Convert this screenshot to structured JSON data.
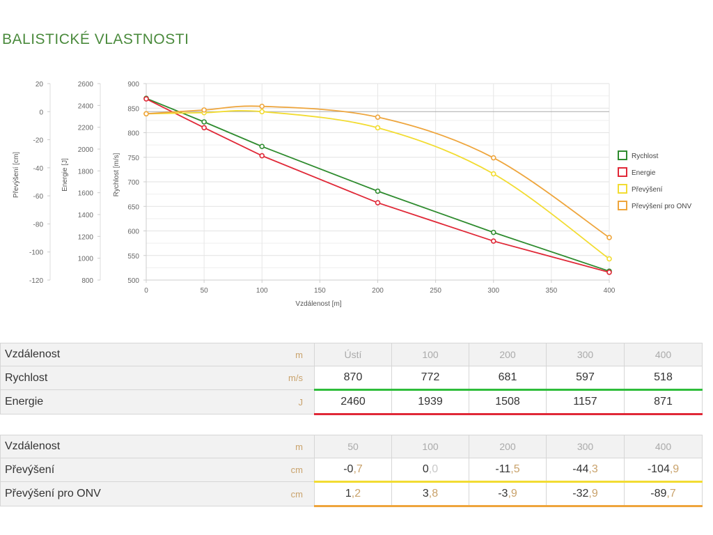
{
  "page": {
    "title": "BALISTICKÉ VLASTNOSTI"
  },
  "chart_data": {
    "type": "line",
    "xlabel": "Vzdálenost [m]",
    "xlim": [
      0,
      400
    ],
    "x_ticks": [
      "0",
      "50",
      "100",
      "150",
      "200",
      "250",
      "300",
      "350",
      "400"
    ],
    "axes": {
      "prevyseni": {
        "label": "Převýšení [cm]",
        "lim": [
          -120,
          20
        ],
        "ticks": [
          "20",
          "0",
          "-20",
          "-40",
          "-60",
          "-80",
          "-100",
          "-120"
        ]
      },
      "energie": {
        "label": "Energie [J]",
        "lim": [
          800,
          2600
        ],
        "ticks": [
          "2600",
          "2400",
          "2200",
          "2000",
          "1800",
          "1600",
          "1400",
          "1200",
          "1000",
          "800"
        ]
      },
      "rychlost": {
        "label": "Rychlost [m/s]",
        "lim": [
          500,
          900
        ],
        "ticks": [
          "900",
          "850",
          "800",
          "750",
          "700",
          "650",
          "600",
          "550",
          "500"
        ]
      }
    },
    "series": [
      {
        "name": "Rychlost",
        "axis": "rychlost",
        "color": "#2e8b2e",
        "x": [
          0,
          50,
          100,
          200,
          300,
          400
        ],
        "values": [
          870,
          822,
          772,
          681,
          597,
          518
        ],
        "smooth": false
      },
      {
        "name": "Energie",
        "axis": "energie",
        "color": "#e02837",
        "x": [
          0,
          50,
          100,
          200,
          300,
          400
        ],
        "values": [
          2460,
          2196,
          1939,
          1508,
          1157,
          871
        ],
        "smooth": false
      },
      {
        "name": "Převýšení",
        "axis": "prevyseni",
        "color": "#f2dc32",
        "x": [
          0,
          50,
          100,
          200,
          300,
          400
        ],
        "values": [
          -1.5,
          -0.7,
          0.0,
          -11.5,
          -44.3,
          -104.9
        ],
        "smooth": true
      },
      {
        "name": "Převýšení pro ONV",
        "axis": "prevyseni",
        "color": "#eea53c",
        "x": [
          0,
          50,
          100,
          200,
          300,
          400
        ],
        "values": [
          -1.5,
          1.2,
          3.8,
          -3.9,
          -32.9,
          -89.7
        ],
        "smooth": true
      }
    ],
    "legend": "right"
  },
  "table1": {
    "rows": [
      {
        "label": "Vzdálenost",
        "unit": "m",
        "values": [
          "Ústí",
          "100",
          "200",
          "300",
          "400"
        ]
      },
      {
        "label": "Rychlost",
        "unit": "m/s",
        "values": [
          "870",
          "772",
          "681",
          "597",
          "518"
        ]
      },
      {
        "label": "Energie",
        "unit": "J",
        "values": [
          "2460",
          "1939",
          "1508",
          "1157",
          "871"
        ]
      }
    ]
  },
  "table2": {
    "rows": [
      {
        "label": "Vzdálenost",
        "unit": "m",
        "values": [
          "50",
          "100",
          "200",
          "300",
          "400"
        ]
      },
      {
        "label": "Převýšení",
        "unit": "cm",
        "values": [
          [
            "-0",
            ",7"
          ],
          [
            "0",
            ",0"
          ],
          [
            "-11",
            ",5"
          ],
          [
            "-44",
            ",3"
          ],
          [
            "-104",
            ",9"
          ]
        ]
      },
      {
        "label": "Převýšení pro ONV",
        "unit": "cm",
        "values": [
          [
            "1",
            ",2"
          ],
          [
            "3",
            ",8"
          ],
          [
            "-3",
            ",9"
          ],
          [
            "-32",
            ",9"
          ],
          [
            "-89",
            ",7"
          ]
        ]
      }
    ]
  }
}
